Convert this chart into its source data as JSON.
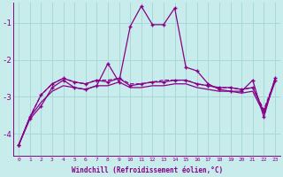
{
  "xlabel": "Windchill (Refroidissement éolien,°C)",
  "background_color": "#c8ecec",
  "grid_color": "#a8d8d8",
  "line_color": "#880088",
  "x": [
    0,
    1,
    2,
    3,
    4,
    5,
    6,
    7,
    8,
    9,
    10,
    11,
    12,
    13,
    14,
    15,
    16,
    17,
    18,
    19,
    20,
    21,
    22,
    23
  ],
  "line1": [
    -4.3,
    -3.6,
    -3.25,
    -2.75,
    -2.55,
    -2.75,
    -2.8,
    -2.7,
    -2.1,
    -2.6,
    -1.1,
    -0.55,
    -1.05,
    -1.05,
    -0.6,
    -2.2,
    -2.3,
    -2.65,
    -2.8,
    -2.85,
    -2.85,
    -2.55,
    -3.55,
    -2.5
  ],
  "line2": [
    -4.3,
    -3.55,
    -2.95,
    -2.65,
    -2.5,
    -2.6,
    -2.65,
    -2.55,
    -2.6,
    -2.5,
    -2.7,
    -2.65,
    -2.6,
    -2.6,
    -2.55,
    -2.55,
    -2.65,
    -2.7,
    -2.75,
    -2.75,
    -2.8,
    -2.75,
    -3.4,
    -2.55
  ],
  "line3": [
    -4.3,
    -3.55,
    -2.95,
    -2.65,
    -2.5,
    -2.6,
    -2.65,
    -2.55,
    -2.55,
    -2.5,
    -2.65,
    -2.65,
    -2.6,
    -2.55,
    -2.55,
    -2.55,
    -2.65,
    -2.7,
    -2.75,
    -2.75,
    -2.8,
    -2.75,
    -3.35,
    -2.55
  ],
  "line4": [
    -4.3,
    -3.55,
    -3.15,
    -2.85,
    -2.7,
    -2.75,
    -2.8,
    -2.7,
    -2.7,
    -2.6,
    -2.75,
    -2.75,
    -2.7,
    -2.7,
    -2.65,
    -2.65,
    -2.75,
    -2.8,
    -2.85,
    -2.85,
    -2.9,
    -2.85,
    -3.45,
    -2.6
  ],
  "ylim": [
    -4.6,
    -0.45
  ],
  "yticks": [
    -4,
    -3,
    -2,
    -1
  ],
  "xlim": [
    -0.5,
    23.5
  ],
  "figsize": [
    3.2,
    2.0
  ],
  "dpi": 100
}
